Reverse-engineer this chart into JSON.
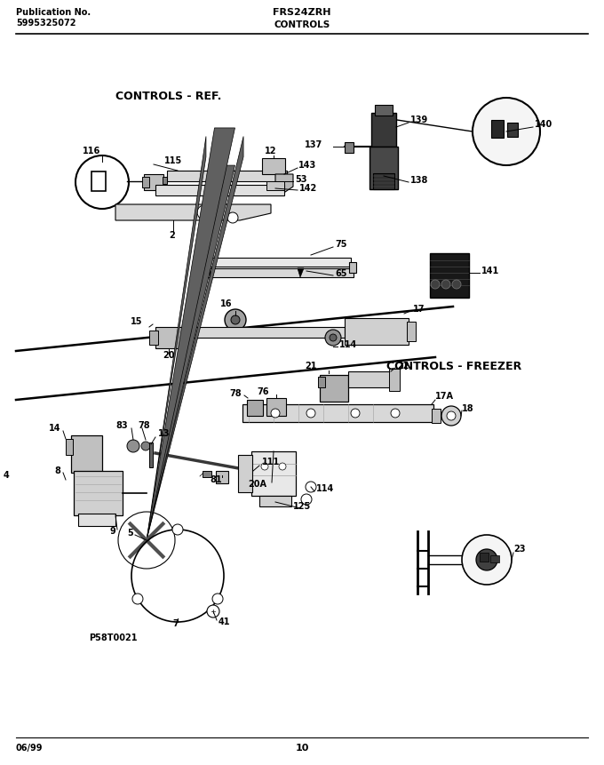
{
  "title": "FRS24ZRH",
  "subtitle": "CONTROLS",
  "pub_no_label": "Publication No.",
  "pub_no_value": "5995325072",
  "date_label": "06/99",
  "page_number": "10",
  "diagram_id": "P58T0021",
  "section_ref": "CONTROLS - REF.",
  "section_freezer": "CONTROLS - FREEZER",
  "bg_color": "#ffffff",
  "fig_width": 6.8,
  "fig_height": 8.61,
  "dpi": 100
}
